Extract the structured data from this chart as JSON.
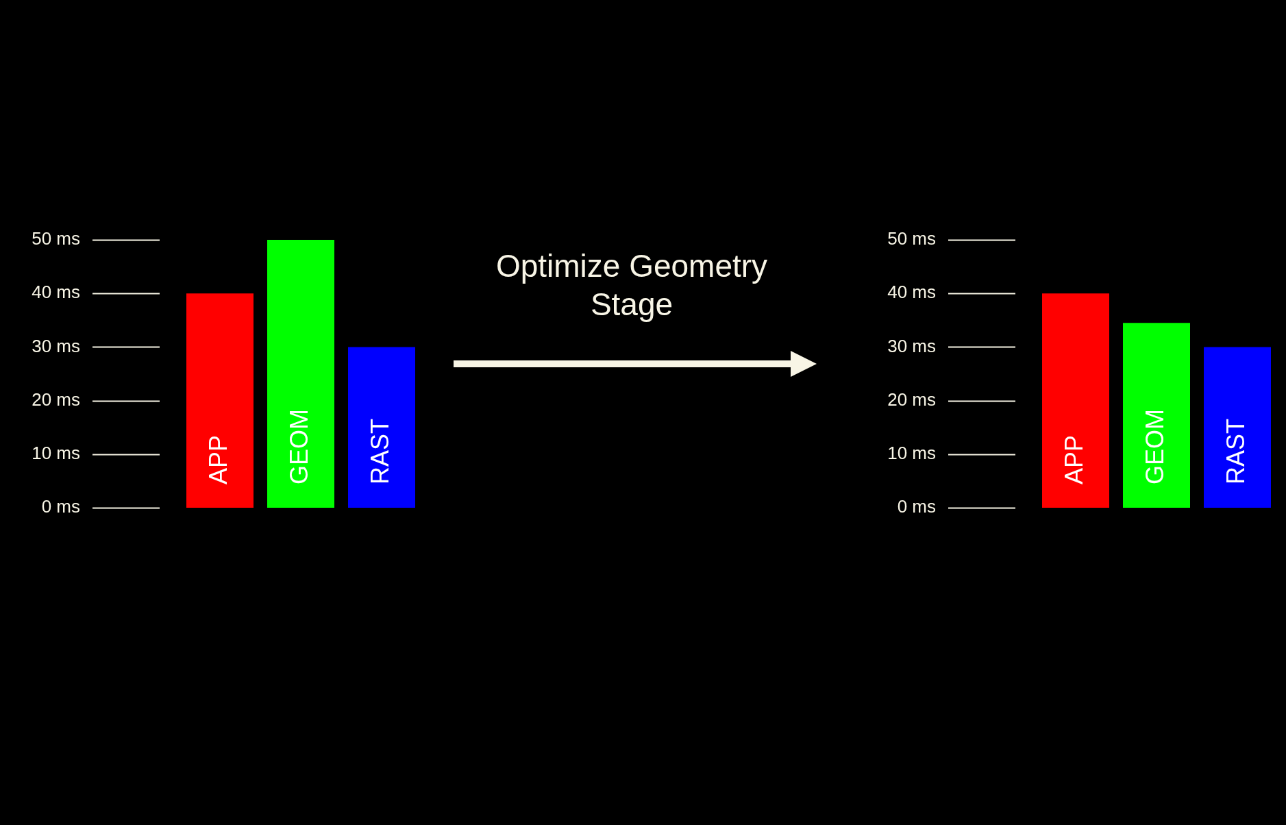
{
  "chart_data": [
    {
      "type": "bar",
      "categories": [
        "APP",
        "GEOM",
        "RAST"
      ],
      "values": [
        40,
        50,
        30
      ],
      "colors": [
        "#ff0000",
        "#00ff00",
        "#0000ff"
      ],
      "ylim": [
        0,
        50
      ],
      "yticks": [
        {
          "value": 0,
          "label": "0 ms"
        },
        {
          "value": 10,
          "label": "10 ms"
        },
        {
          "value": 20,
          "label": "20 ms"
        },
        {
          "value": 30,
          "label": "30 ms"
        },
        {
          "value": 40,
          "label": "40 ms"
        },
        {
          "value": 50,
          "label": "50 ms"
        }
      ],
      "legend": false
    },
    {
      "type": "other",
      "annotations": [
        "Optimize Geometry Stage"
      ]
    },
    {
      "type": "bar",
      "categories": [
        "APP",
        "GEOM",
        "RAST"
      ],
      "values": [
        40,
        34.5,
        30
      ],
      "colors": [
        "#ff0000",
        "#00ff00",
        "#0000ff"
      ],
      "ylim": [
        0,
        50
      ],
      "yticks": [
        {
          "value": 0,
          "label": "0 ms"
        },
        {
          "value": 10,
          "label": "10 ms"
        },
        {
          "value": 20,
          "label": "20 ms"
        },
        {
          "value": 30,
          "label": "30 ms"
        },
        {
          "value": 40,
          "label": "40 ms"
        },
        {
          "value": 50,
          "label": "50 ms"
        }
      ],
      "legend": false
    }
  ]
}
